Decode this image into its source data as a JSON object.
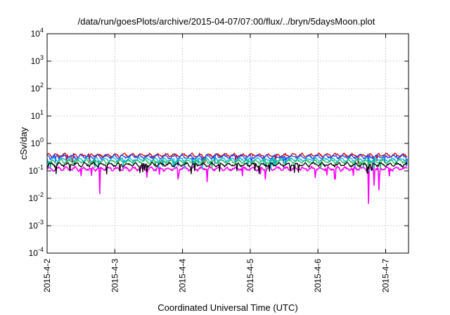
{
  "chart_data": {
    "type": "line",
    "title": "/data/run/goesPlots/archive/2015-04-07/07:00/flux/../bryn/5daysMoon.plot",
    "xlabel": "Coordinated Universal Time (UTC)",
    "ylabel": "cSv/day",
    "yscale": "log",
    "ylim": [
      0.0001,
      10000
    ],
    "xlim_days": [
      0,
      5.32
    ],
    "grid": true,
    "legend": "none",
    "x_ticks": [
      {
        "day": 0,
        "label": "2015-4-2"
      },
      {
        "day": 1,
        "label": "2015-4-3"
      },
      {
        "day": 2,
        "label": "2015-4-4"
      },
      {
        "day": 3,
        "label": "2015-4-5"
      },
      {
        "day": 4,
        "label": "2015-4-6"
      },
      {
        "day": 5,
        "label": "2015-4-7"
      }
    ],
    "y_ticks": [
      {
        "value": 0.0001,
        "base": "10",
        "exp": "-4"
      },
      {
        "value": 0.001,
        "base": "10",
        "exp": "-3"
      },
      {
        "value": 0.01,
        "base": "10",
        "exp": "-2"
      },
      {
        "value": 0.1,
        "base": "10",
        "exp": "-1"
      },
      {
        "value": 1,
        "base": "10",
        "exp": "0"
      },
      {
        "value": 10,
        "base": "10",
        "exp": "1"
      },
      {
        "value": 100,
        "base": "10",
        "exp": "2"
      },
      {
        "value": 1000,
        "base": "10",
        "exp": "3"
      },
      {
        "value": 10000,
        "base": "10",
        "exp": "4"
      }
    ],
    "series": [
      {
        "color": "#ff00ff",
        "base": 0.12,
        "dips": [
          [
            0.78,
            0.015
          ],
          [
            1.93,
            0.05
          ],
          [
            2.36,
            0.04
          ],
          [
            3.22,
            0.05
          ],
          [
            4.25,
            0.05
          ],
          [
            4.75,
            0.0065
          ],
          [
            4.83,
            0.03
          ],
          [
            4.9,
            0.02
          ]
        ]
      },
      {
        "color": "#cc0000",
        "base": 0.37,
        "dips": [
          [
            4.75,
            0.08
          ],
          [
            4.83,
            0.12
          ]
        ]
      },
      {
        "color": "#2244ff",
        "base": 0.33,
        "dips": [
          [
            1.93,
            0.15
          ],
          [
            4.75,
            0.09
          ],
          [
            4.83,
            0.12
          ]
        ]
      },
      {
        "color": "#00bbdd",
        "base": 0.26,
        "dips": [
          [
            4.75,
            0.1
          ],
          [
            4.83,
            0.13
          ]
        ]
      },
      {
        "color": "#22bb66",
        "base": 0.22,
        "dips": [
          [
            4.75,
            0.11
          ]
        ]
      },
      {
        "color": "#000000",
        "base": 0.17,
        "dips": [
          [
            4.75,
            0.12
          ]
        ]
      }
    ]
  }
}
